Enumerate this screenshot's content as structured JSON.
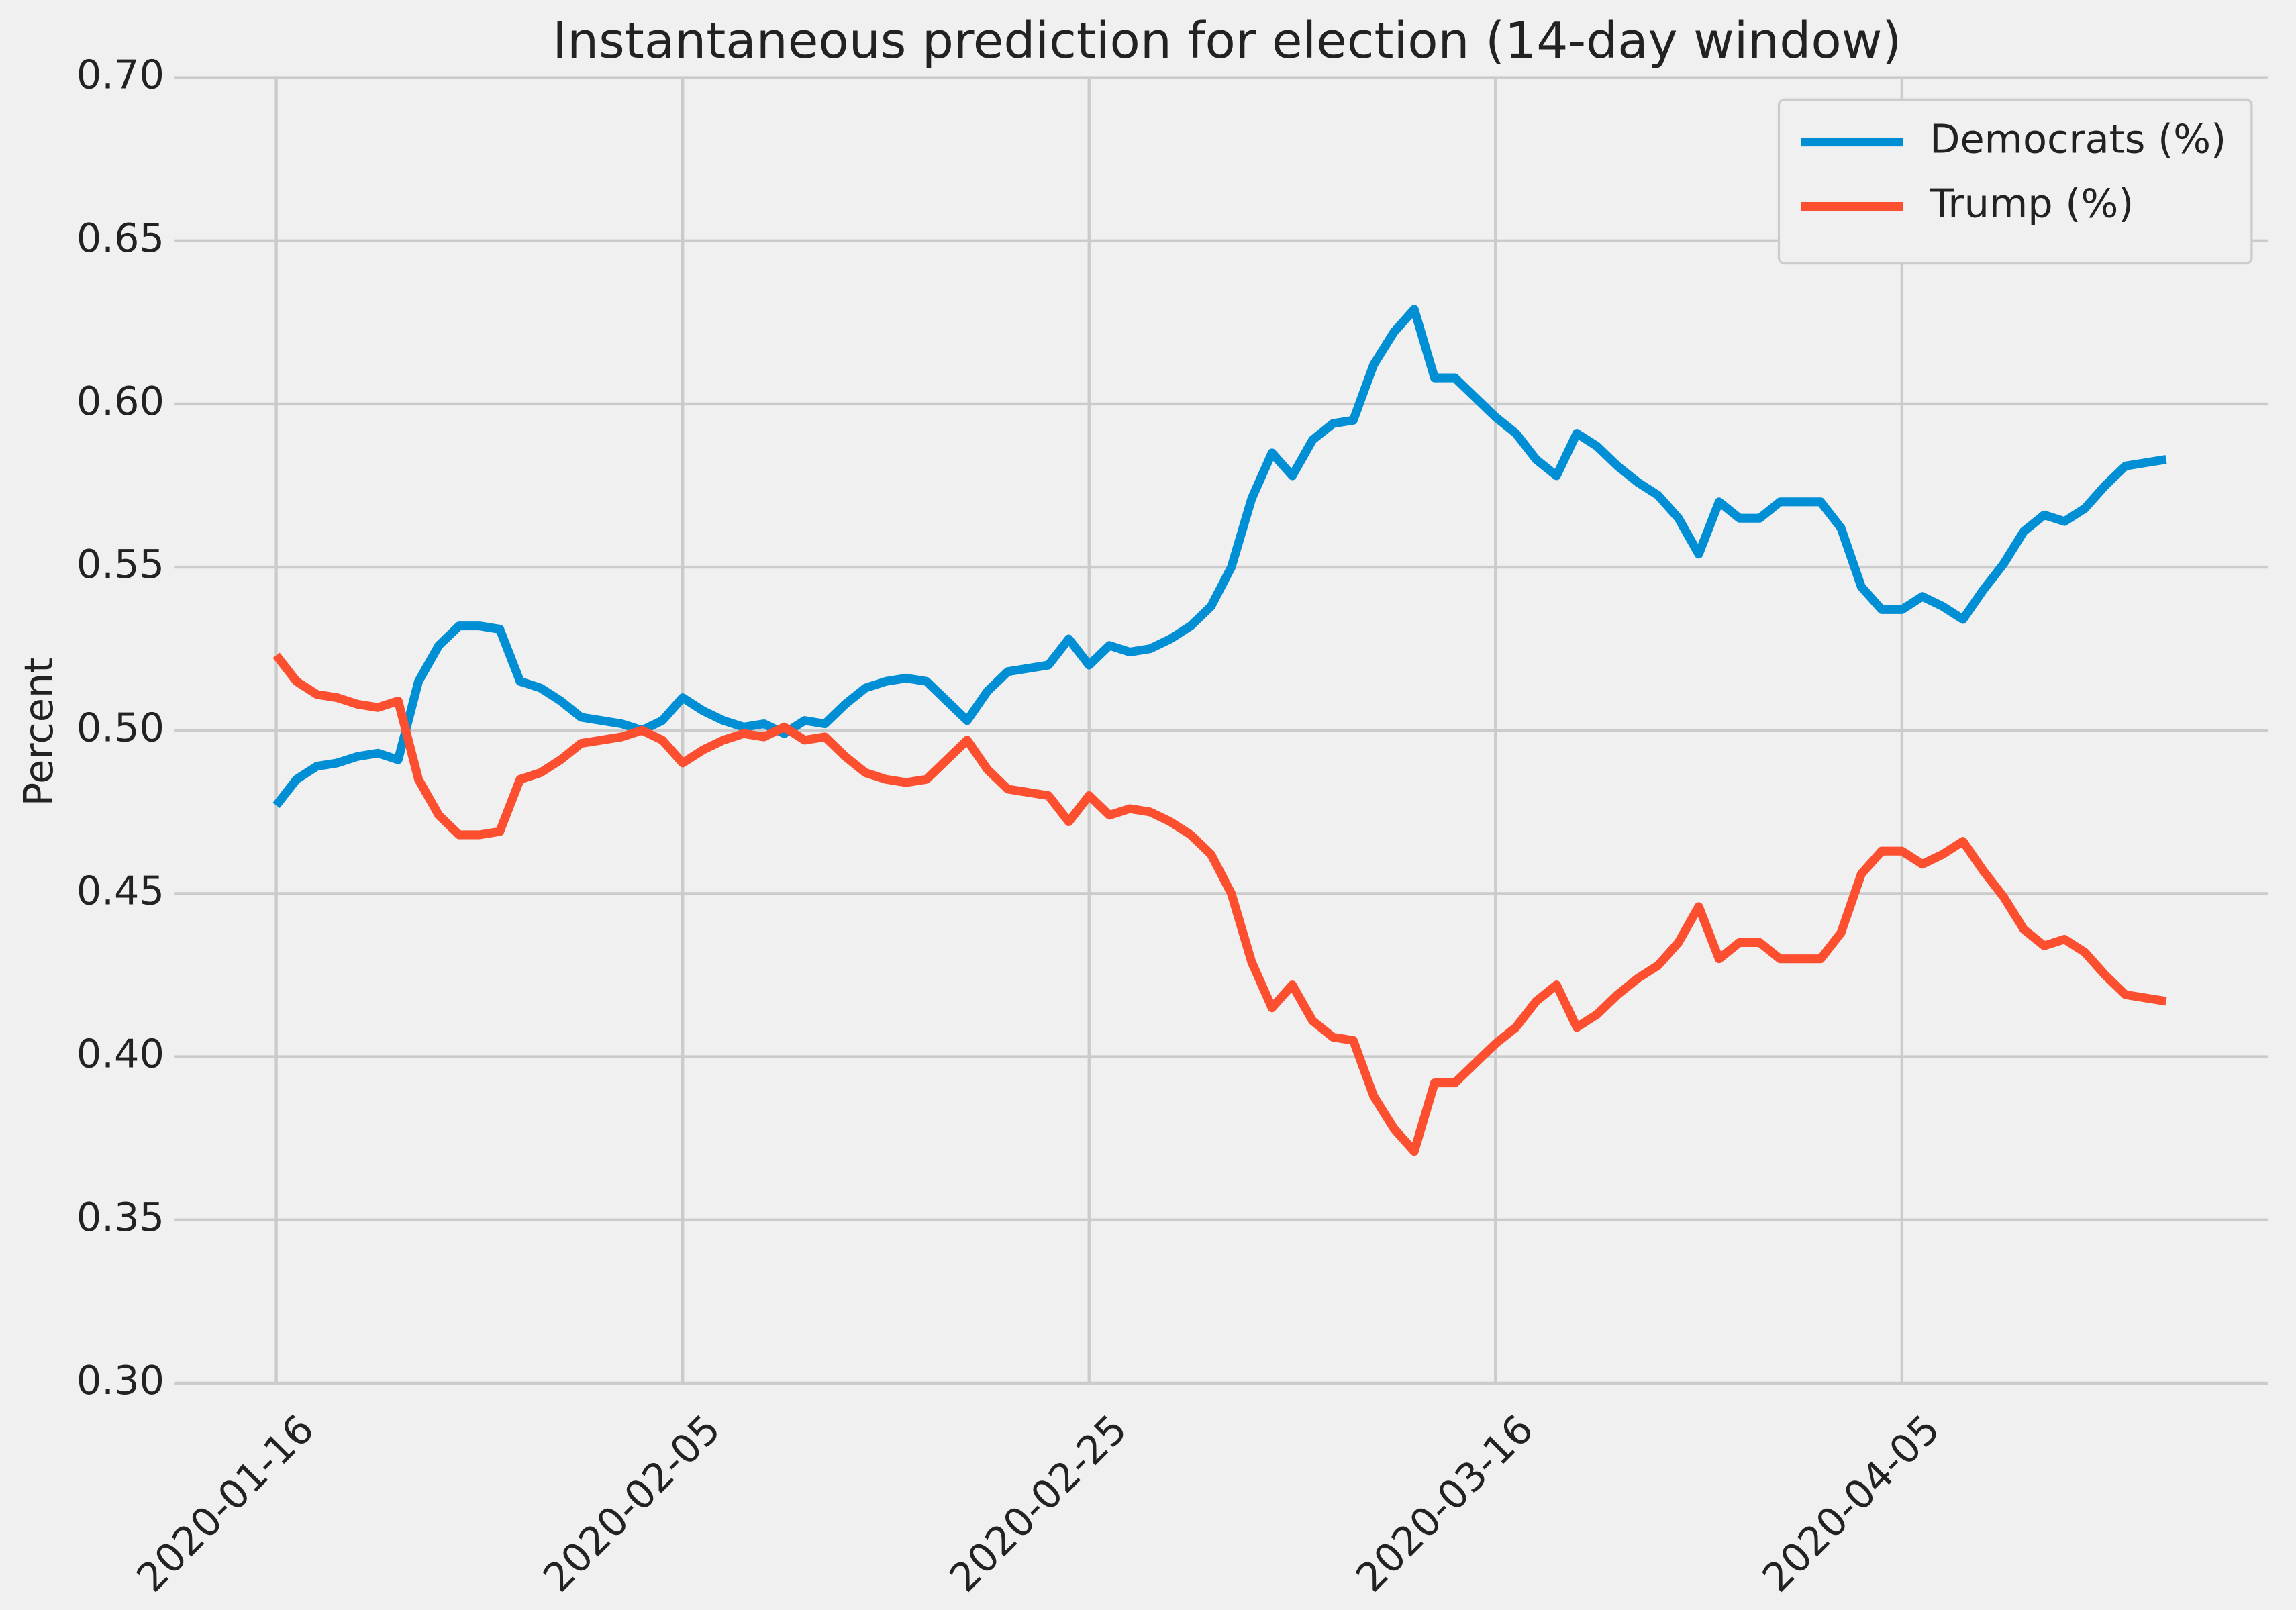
{
  "chart_data": {
    "type": "line",
    "title": "Instantaneous prediction for election (14-day window)",
    "ylabel": "Percent",
    "x": [
      "2020-01-16",
      "2020-01-17",
      "2020-01-18",
      "2020-01-19",
      "2020-01-20",
      "2020-01-21",
      "2020-01-22",
      "2020-01-23",
      "2020-01-24",
      "2020-01-25",
      "2020-01-26",
      "2020-01-27",
      "2020-01-28",
      "2020-01-29",
      "2020-01-30",
      "2020-01-31",
      "2020-02-01",
      "2020-02-02",
      "2020-02-03",
      "2020-02-04",
      "2020-02-05",
      "2020-02-06",
      "2020-02-07",
      "2020-02-08",
      "2020-02-09",
      "2020-02-10",
      "2020-02-11",
      "2020-02-12",
      "2020-02-13",
      "2020-02-14",
      "2020-02-15",
      "2020-02-16",
      "2020-02-17",
      "2020-02-18",
      "2020-02-19",
      "2020-02-20",
      "2020-02-21",
      "2020-02-22",
      "2020-02-23",
      "2020-02-24",
      "2020-02-25",
      "2020-02-26",
      "2020-02-27",
      "2020-02-28",
      "2020-02-29",
      "2020-03-01",
      "2020-03-02",
      "2020-03-03",
      "2020-03-04",
      "2020-03-05",
      "2020-03-06",
      "2020-03-07",
      "2020-03-08",
      "2020-03-09",
      "2020-03-10",
      "2020-03-11",
      "2020-03-12",
      "2020-03-13",
      "2020-03-14",
      "2020-03-15",
      "2020-03-16",
      "2020-03-17",
      "2020-03-18",
      "2020-03-19",
      "2020-03-20",
      "2020-03-21",
      "2020-03-22",
      "2020-03-23",
      "2020-03-24",
      "2020-03-25",
      "2020-03-26",
      "2020-03-27",
      "2020-03-28",
      "2020-03-29",
      "2020-03-30",
      "2020-03-31",
      "2020-04-01",
      "2020-04-02",
      "2020-04-03",
      "2020-04-04",
      "2020-04-05",
      "2020-04-06",
      "2020-04-07",
      "2020-04-08",
      "2020-04-09",
      "2020-04-10",
      "2020-04-11",
      "2020-04-12",
      "2020-04-13",
      "2020-04-14",
      "2020-04-15",
      "2020-04-16",
      "2020-04-17",
      "2020-04-18"
    ],
    "series": [
      {
        "name": "Democrats (%)",
        "color": "#008fd5",
        "values": [
          0.477,
          0.485,
          0.489,
          0.49,
          0.492,
          0.493,
          0.491,
          0.515,
          0.526,
          0.532,
          0.532,
          0.531,
          0.515,
          0.513,
          0.509,
          0.504,
          0.503,
          0.502,
          0.5,
          0.503,
          0.51,
          0.506,
          0.503,
          0.501,
          0.502,
          0.499,
          0.503,
          0.502,
          0.508,
          0.513,
          0.515,
          0.516,
          0.515,
          0.509,
          0.503,
          0.512,
          0.518,
          0.519,
          0.52,
          0.528,
          0.52,
          0.526,
          0.524,
          0.525,
          0.528,
          0.532,
          0.538,
          0.55,
          0.571,
          0.585,
          0.578,
          0.589,
          0.594,
          0.595,
          0.612,
          0.622,
          0.629,
          0.608,
          0.608,
          0.602,
          0.596,
          0.591,
          0.583,
          0.578,
          0.591,
          0.587,
          0.581,
          0.576,
          0.572,
          0.565,
          0.554,
          0.57,
          0.565,
          0.565,
          0.57,
          0.57,
          0.57,
          0.562,
          0.544,
          0.537,
          0.537,
          0.541,
          0.538,
          0.534,
          0.543,
          0.551,
          0.561,
          0.566,
          0.564,
          0.568,
          0.575,
          0.581,
          0.582,
          0.583
        ]
      },
      {
        "name": "Trump (%)",
        "color": "#fc4f30",
        "values": [
          0.523,
          0.515,
          0.511,
          0.51,
          0.508,
          0.507,
          0.509,
          0.485,
          0.474,
          0.468,
          0.468,
          0.469,
          0.485,
          0.487,
          0.491,
          0.496,
          0.497,
          0.498,
          0.5,
          0.497,
          0.49,
          0.494,
          0.497,
          0.499,
          0.498,
          0.501,
          0.497,
          0.498,
          0.492,
          0.487,
          0.485,
          0.484,
          0.485,
          0.491,
          0.497,
          0.488,
          0.482,
          0.481,
          0.48,
          0.472,
          0.48,
          0.474,
          0.476,
          0.475,
          0.472,
          0.468,
          0.462,
          0.45,
          0.429,
          0.415,
          0.422,
          0.411,
          0.406,
          0.405,
          0.388,
          0.378,
          0.371,
          0.392,
          0.392,
          0.398,
          0.404,
          0.409,
          0.417,
          0.422,
          0.409,
          0.413,
          0.419,
          0.424,
          0.428,
          0.435,
          0.446,
          0.43,
          0.435,
          0.435,
          0.43,
          0.43,
          0.43,
          0.438,
          0.456,
          0.463,
          0.463,
          0.459,
          0.462,
          0.466,
          0.457,
          0.449,
          0.439,
          0.434,
          0.436,
          0.432,
          0.425,
          0.419,
          0.418,
          0.417
        ]
      }
    ],
    "xlim": [
      "2020-01-11",
      "2020-04-23"
    ],
    "xticks": [
      "2020-01-16",
      "2020-02-05",
      "2020-02-25",
      "2020-03-16",
      "2020-04-05"
    ],
    "ylim": [
      0.3,
      0.7
    ],
    "yticks": [
      {
        "value": 0.3,
        "label": "0.30"
      },
      0.35,
      {
        "value": 0.4,
        "label": "0.40"
      },
      0.45,
      {
        "value": 0.5,
        "label": "0.50"
      },
      0.55,
      {
        "value": 0.6,
        "label": "0.60"
      },
      0.65,
      {
        "value": 0.7,
        "label": "0.70"
      }
    ],
    "grid": true,
    "legend": "upper right"
  }
}
